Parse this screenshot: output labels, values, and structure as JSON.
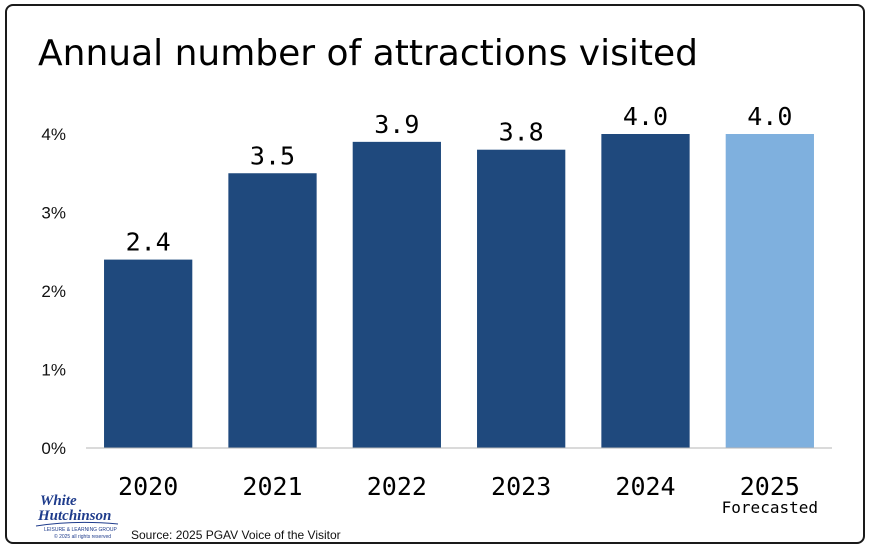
{
  "chart_data": {
    "type": "bar",
    "title": "Annual number of attractions visited",
    "categories": [
      "2020",
      "2021",
      "2022",
      "2023",
      "2024",
      "2025"
    ],
    "category_sublabels": [
      "",
      "",
      "",
      "",
      "",
      "Forecasted"
    ],
    "values": [
      2.4,
      3.5,
      3.9,
      3.8,
      4.0,
      4.0
    ],
    "data_labels": [
      "2.4",
      "3.5",
      "3.9",
      "3.8",
      "4.0",
      "4.0"
    ],
    "ylim": [
      0,
      4
    ],
    "yticks": [
      0,
      1,
      2,
      3,
      4
    ],
    "ytick_labels": [
      "0%",
      "1%",
      "2%",
      "3%",
      "4%"
    ],
    "bar_colors": [
      "#1f497d",
      "#1f497d",
      "#1f497d",
      "#1f497d",
      "#1f497d",
      "#7fb0de"
    ],
    "grid": false,
    "legend": "none"
  },
  "source": "Source: 2025 PGAV Voice of the Visitor",
  "logo": {
    "line1": "White",
    "line2": "Hutchinson",
    "tagline": "LEISURE & LEARNING GROUP",
    "copyright": "© 2025 all rights reserved"
  }
}
